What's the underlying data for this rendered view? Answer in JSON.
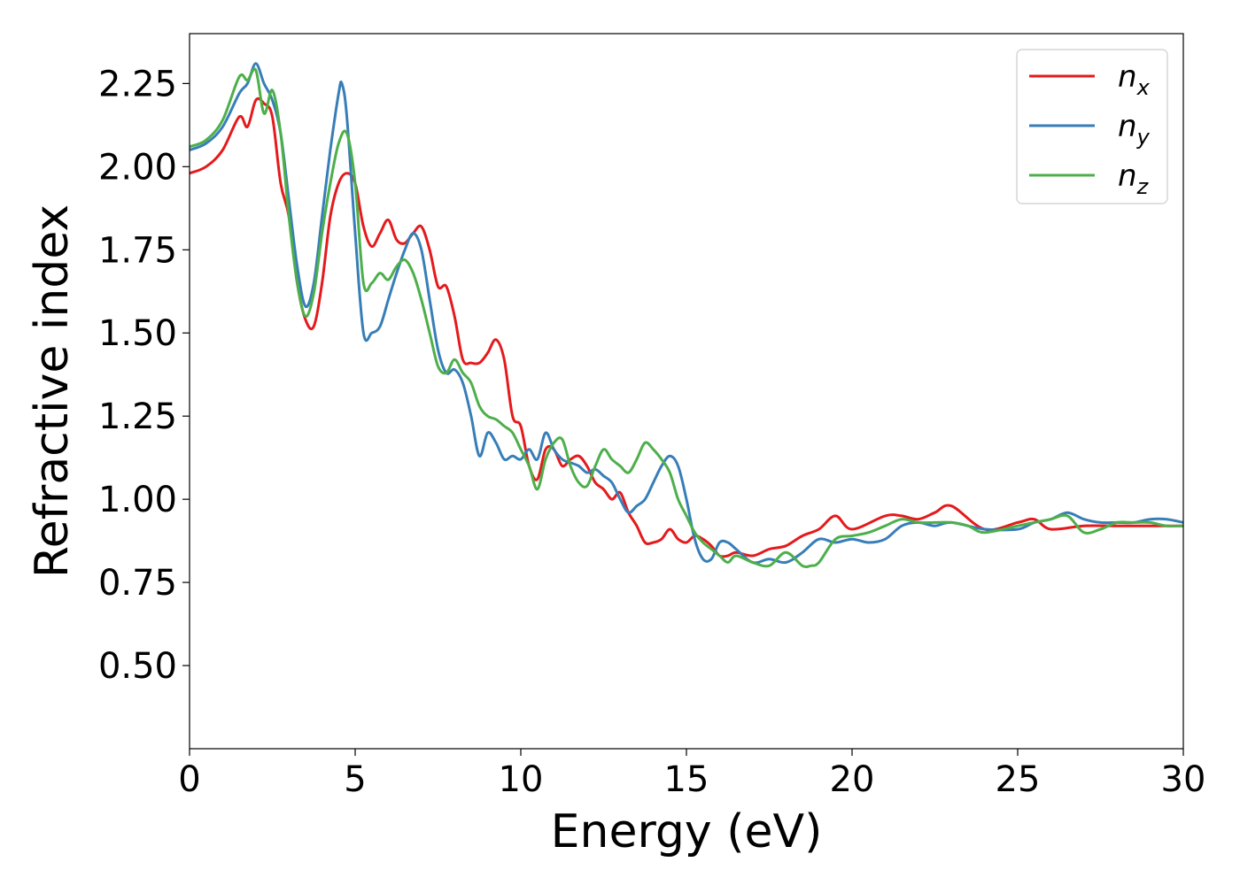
{
  "chart_data": {
    "type": "line",
    "xlabel": "Energy (eV)",
    "ylabel": "Refractive index",
    "xlim": [
      0,
      30
    ],
    "ylim": [
      0.25,
      2.4
    ],
    "x_ticks": [
      0,
      5,
      10,
      15,
      20,
      25,
      30
    ],
    "x_tick_labels": [
      "0",
      "5",
      "10",
      "15",
      "20",
      "25",
      "30"
    ],
    "y_ticks": [
      0.5,
      0.75,
      1.0,
      1.25,
      1.5,
      1.75,
      2.0,
      2.25
    ],
    "y_tick_labels": [
      "0.50",
      "0.75",
      "1.00",
      "1.25",
      "1.50",
      "1.75",
      "2.00",
      "2.25"
    ],
    "grid": false,
    "legend_position": "top-right",
    "series": [
      {
        "name": "n_x",
        "label_base": "n",
        "label_sub": "x",
        "color": "#e41a1c",
        "x": [
          0,
          0.5,
          1.0,
          1.5,
          1.75,
          2.0,
          2.25,
          2.5,
          2.75,
          3.0,
          3.25,
          3.5,
          3.75,
          4.0,
          4.25,
          4.5,
          4.75,
          5.0,
          5.25,
          5.5,
          5.75,
          6.0,
          6.25,
          6.5,
          6.75,
          7.0,
          7.25,
          7.5,
          7.75,
          8.0,
          8.25,
          8.5,
          8.75,
          9.0,
          9.25,
          9.5,
          9.75,
          10.0,
          10.25,
          10.5,
          10.75,
          11.0,
          11.25,
          11.5,
          11.75,
          12.0,
          12.25,
          12.5,
          12.75,
          13.0,
          13.25,
          13.5,
          13.75,
          14.0,
          14.25,
          14.5,
          14.75,
          15.0,
          15.25,
          15.5,
          15.75,
          16.0,
          16.25,
          16.5,
          17.0,
          17.5,
          18.0,
          18.5,
          19.0,
          19.5,
          20.0,
          21.0,
          21.5,
          22.0,
          22.5,
          23.0,
          24.0,
          25.0,
          25.5,
          26.0,
          27.0,
          28.0,
          29.0,
          30.0
        ],
        "y": [
          1.98,
          2.0,
          2.05,
          2.15,
          2.12,
          2.2,
          2.19,
          2.15,
          1.95,
          1.85,
          1.65,
          1.54,
          1.52,
          1.65,
          1.85,
          1.95,
          1.98,
          1.95,
          1.82,
          1.76,
          1.8,
          1.84,
          1.78,
          1.77,
          1.8,
          1.82,
          1.75,
          1.64,
          1.64,
          1.55,
          1.42,
          1.41,
          1.41,
          1.44,
          1.48,
          1.42,
          1.25,
          1.22,
          1.1,
          1.06,
          1.15,
          1.15,
          1.1,
          1.12,
          1.13,
          1.1,
          1.05,
          1.03,
          1.0,
          1.02,
          0.96,
          0.92,
          0.87,
          0.87,
          0.88,
          0.91,
          0.88,
          0.87,
          0.89,
          0.88,
          0.86,
          0.83,
          0.83,
          0.84,
          0.83,
          0.85,
          0.86,
          0.89,
          0.91,
          0.95,
          0.91,
          0.95,
          0.95,
          0.94,
          0.96,
          0.98,
          0.91,
          0.93,
          0.94,
          0.91,
          0.92,
          0.92,
          0.92,
          0.92
        ]
      },
      {
        "name": "n_y",
        "label_base": "n",
        "label_sub": "y",
        "color": "#377eb8",
        "x": [
          0,
          0.5,
          1.0,
          1.5,
          1.75,
          2.0,
          2.25,
          2.5,
          2.75,
          3.0,
          3.25,
          3.5,
          3.75,
          4.0,
          4.25,
          4.5,
          4.6,
          4.75,
          5.0,
          5.25,
          5.5,
          5.75,
          6.0,
          6.25,
          6.5,
          6.75,
          7.0,
          7.25,
          7.5,
          7.75,
          8.0,
          8.25,
          8.5,
          8.75,
          9.0,
          9.25,
          9.5,
          9.75,
          10.0,
          10.25,
          10.5,
          10.75,
          11.0,
          11.25,
          11.5,
          11.75,
          12.0,
          12.25,
          12.5,
          12.75,
          13.0,
          13.25,
          13.5,
          13.75,
          14.0,
          14.25,
          14.5,
          14.75,
          15.0,
          15.25,
          15.5,
          15.75,
          16.0,
          16.25,
          16.5,
          17.0,
          17.5,
          18.0,
          18.5,
          19.0,
          19.5,
          20.0,
          20.5,
          21.0,
          21.5,
          22.0,
          22.5,
          23.0,
          24.0,
          25.0,
          25.5,
          26.0,
          26.5,
          27.0,
          27.5,
          28.0,
          28.5,
          29.0,
          29.5,
          30.0
        ],
        "y": [
          2.05,
          2.07,
          2.12,
          2.22,
          2.25,
          2.31,
          2.25,
          2.2,
          2.1,
          1.9,
          1.7,
          1.58,
          1.65,
          1.85,
          2.05,
          2.22,
          2.25,
          2.15,
          1.8,
          1.5,
          1.5,
          1.52,
          1.6,
          1.68,
          1.75,
          1.8,
          1.75,
          1.6,
          1.45,
          1.38,
          1.39,
          1.35,
          1.25,
          1.13,
          1.2,
          1.17,
          1.12,
          1.13,
          1.12,
          1.15,
          1.12,
          1.2,
          1.15,
          1.12,
          1.11,
          1.1,
          1.08,
          1.09,
          1.07,
          1.05,
          1.0,
          0.96,
          0.98,
          1.0,
          1.05,
          1.1,
          1.13,
          1.1,
          1.0,
          0.88,
          0.82,
          0.82,
          0.87,
          0.87,
          0.85,
          0.81,
          0.82,
          0.81,
          0.84,
          0.88,
          0.87,
          0.88,
          0.87,
          0.88,
          0.92,
          0.93,
          0.92,
          0.93,
          0.91,
          0.91,
          0.93,
          0.94,
          0.96,
          0.94,
          0.93,
          0.93,
          0.93,
          0.94,
          0.94,
          0.93
        ]
      },
      {
        "name": "n_z",
        "label_base": "n",
        "label_sub": "z",
        "color": "#4daf4a",
        "x": [
          0,
          0.5,
          1.0,
          1.5,
          1.75,
          2.0,
          2.25,
          2.5,
          2.75,
          3.0,
          3.25,
          3.5,
          3.75,
          4.0,
          4.25,
          4.5,
          4.75,
          5.0,
          5.25,
          5.5,
          5.75,
          6.0,
          6.25,
          6.5,
          6.75,
          7.0,
          7.25,
          7.5,
          7.75,
          8.0,
          8.25,
          8.5,
          8.75,
          9.0,
          9.25,
          9.5,
          9.75,
          10.0,
          10.25,
          10.5,
          10.75,
          11.0,
          11.25,
          11.5,
          11.75,
          12.0,
          12.25,
          12.5,
          12.75,
          13.0,
          13.25,
          13.5,
          13.75,
          14.0,
          14.25,
          14.5,
          14.75,
          15.0,
          15.25,
          15.5,
          15.75,
          16.0,
          16.25,
          16.5,
          17.0,
          17.5,
          18.0,
          18.5,
          18.75,
          19.0,
          19.5,
          20.0,
          20.5,
          21.0,
          21.5,
          22.0,
          22.5,
          23.0,
          23.5,
          24.0,
          25.0,
          25.5,
          26.0,
          26.5,
          27.0,
          27.5,
          28.0,
          28.5,
          29.0,
          29.5,
          30.0
        ],
        "y": [
          2.06,
          2.08,
          2.14,
          2.27,
          2.26,
          2.29,
          2.16,
          2.23,
          2.1,
          1.85,
          1.65,
          1.55,
          1.62,
          1.8,
          1.95,
          2.07,
          2.1,
          1.95,
          1.65,
          1.65,
          1.68,
          1.66,
          1.7,
          1.72,
          1.68,
          1.6,
          1.5,
          1.4,
          1.38,
          1.42,
          1.38,
          1.35,
          1.28,
          1.25,
          1.24,
          1.22,
          1.2,
          1.15,
          1.1,
          1.03,
          1.12,
          1.17,
          1.18,
          1.1,
          1.05,
          1.04,
          1.1,
          1.15,
          1.12,
          1.1,
          1.08,
          1.12,
          1.17,
          1.15,
          1.12,
          1.08,
          1.0,
          0.95,
          0.9,
          0.87,
          0.85,
          0.83,
          0.81,
          0.83,
          0.81,
          0.8,
          0.84,
          0.8,
          0.8,
          0.81,
          0.88,
          0.89,
          0.9,
          0.92,
          0.94,
          0.93,
          0.93,
          0.93,
          0.92,
          0.9,
          0.92,
          0.93,
          0.94,
          0.95,
          0.9,
          0.91,
          0.93,
          0.93,
          0.93,
          0.92,
          0.92
        ]
      }
    ]
  }
}
